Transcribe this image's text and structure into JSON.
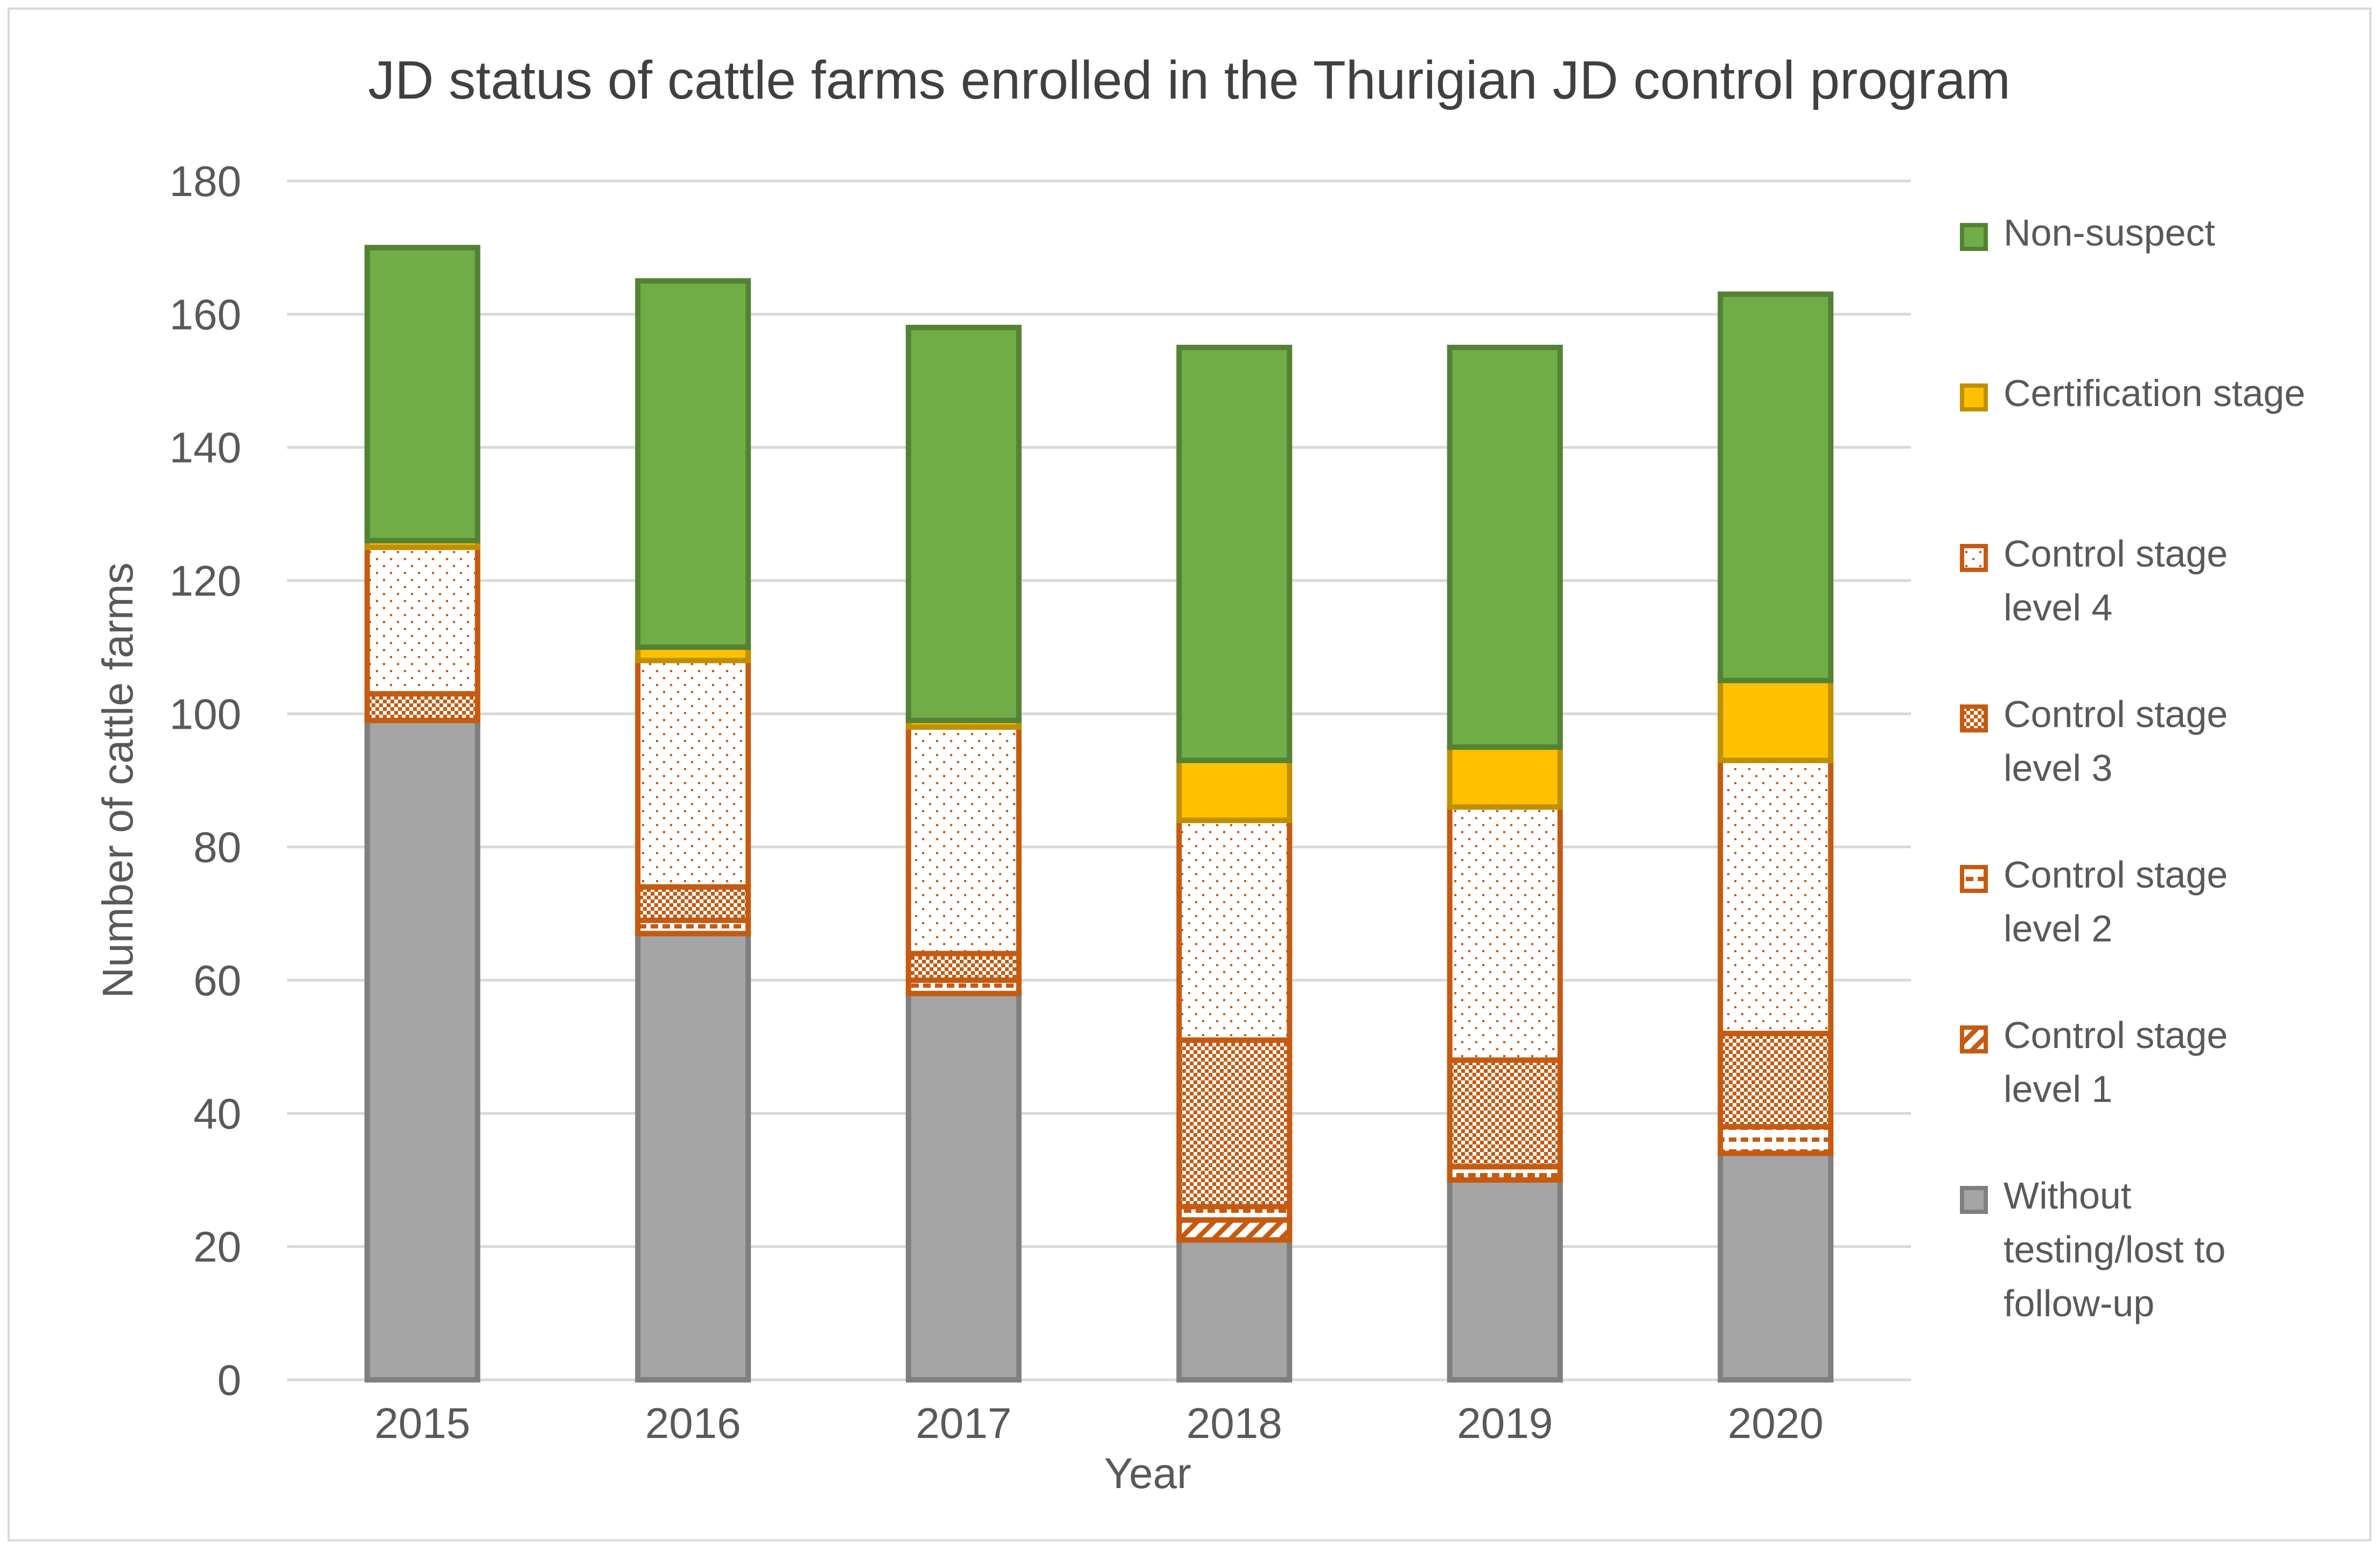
{
  "chart_data": {
    "type": "bar",
    "stacked": true,
    "title": "JD status of cattle farms enrolled in the Thurigian JD control program",
    "xlabel": "Year",
    "ylabel": "Number of cattle farms",
    "ylim": [
      0,
      180
    ],
    "ytick_step": 20,
    "grid": true,
    "legend_position": "right",
    "categories": [
      "2015",
      "2016",
      "2017",
      "2018",
      "2019",
      "2020"
    ],
    "series": [
      {
        "name": "Without testing/lost to follow-up",
        "legend_lines": [
          "Without",
          "testing/lost to",
          "follow-up"
        ],
        "fill": "#a5a5a5",
        "stroke": "#7f7f7f",
        "pattern": "solid",
        "values": [
          99,
          67,
          58,
          21,
          30,
          34
        ]
      },
      {
        "name": "Control stage level 1",
        "legend_lines": [
          "Control stage",
          "level 1"
        ],
        "fill": "#ffffff",
        "stroke": "#c55a11",
        "pattern": "diag",
        "values": [
          0,
          0,
          0,
          3,
          0,
          0
        ]
      },
      {
        "name": "Control stage level 2",
        "legend_lines": [
          "Control stage",
          "level 2"
        ],
        "fill": "#ffffff",
        "stroke": "#c55a11",
        "pattern": "dash",
        "values": [
          0,
          2,
          2,
          2,
          2,
          4
        ]
      },
      {
        "name": "Control stage level 3",
        "legend_lines": [
          "Control stage",
          "level 3"
        ],
        "fill": "#ffffff",
        "stroke": "#c55a11",
        "pattern": "check",
        "values": [
          4,
          5,
          4,
          25,
          16,
          14
        ]
      },
      {
        "name": "Control stage level 4",
        "legend_lines": [
          "Control stage",
          "level 4"
        ],
        "fill": "#ffffff",
        "stroke": "#c55a11",
        "pattern": "dots",
        "values": [
          22,
          34,
          34,
          33,
          38,
          41
        ]
      },
      {
        "name": "Certification stage",
        "legend_lines": [
          "Certification stage"
        ],
        "fill": "#ffc000",
        "stroke": "#bf9000",
        "pattern": "solid",
        "values": [
          1,
          2,
          1,
          9,
          9,
          12
        ]
      },
      {
        "name": "Non-suspect",
        "legend_lines": [
          "Non-suspect"
        ],
        "fill": "#70ad47",
        "stroke": "#548235",
        "pattern": "solid",
        "values": [
          44,
          55,
          59,
          62,
          60,
          58
        ]
      }
    ]
  }
}
